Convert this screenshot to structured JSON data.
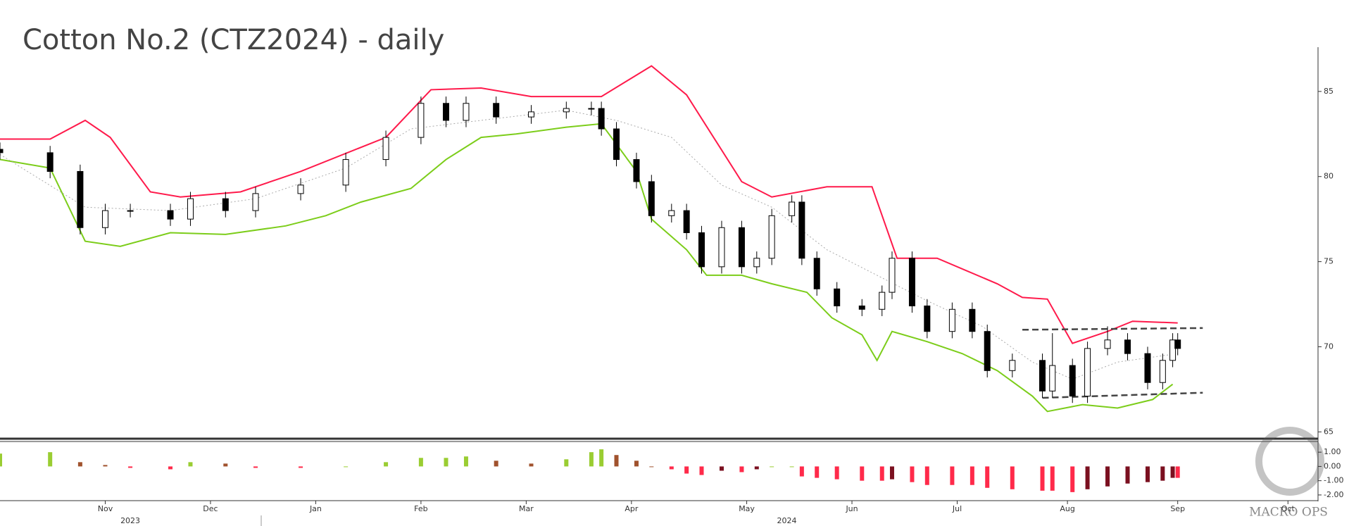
{
  "chart_data": {
    "type": "candlestick",
    "title": "Cotton No.2 (CTZ2024) - daily",
    "watermark": "MACRO OPS",
    "x": [
      0,
      10,
      16,
      21,
      26,
      34,
      38,
      45,
      51,
      60,
      69,
      77,
      84,
      89,
      93,
      99,
      106,
      113,
      118,
      120,
      123,
      127,
      130,
      134,
      137,
      140,
      144,
      148,
      151,
      154,
      158,
      160,
      163,
      167,
      172,
      176,
      178,
      182,
      185,
      190,
      194,
      197,
      202,
      208,
      210,
      214,
      217,
      221,
      225,
      229,
      232,
      234,
      235
    ],
    "open": [
      81.6,
      81.4,
      80.3,
      77,
      78,
      78,
      77.5,
      78.7,
      78,
      79,
      79.5,
      81,
      82.3,
      84.3,
      83.3,
      84.3,
      83.5,
      83.8,
      84,
      84,
      82.8,
      81,
      79.7,
      77.7,
      78,
      76.7,
      74.7,
      77,
      74.7,
      75.2,
      77.7,
      78.5,
      75.2,
      73.4,
      72.4,
      72.2,
      73.2,
      75.2,
      72.4,
      70.9,
      72.2,
      70.9,
      68.6,
      69.2,
      67.4,
      68.9,
      67.1,
      69.9,
      70.4,
      69.6,
      67.9,
      69.2,
      70.4
    ],
    "high": [
      82.0,
      81.8,
      80.7,
      78.4,
      78.4,
      78.4,
      79.1,
      79.1,
      79.4,
      79.9,
      81.4,
      82.7,
      84.7,
      84.7,
      84.7,
      84.7,
      84.2,
      84.4,
      84.4,
      84.4,
      83.2,
      81.4,
      80.1,
      78.4,
      78.4,
      77.1,
      77.4,
      77.4,
      75.6,
      78.1,
      78.9,
      78.9,
      75.6,
      73.8,
      72.8,
      73.6,
      75.6,
      75.6,
      72.8,
      72.6,
      72.6,
      71.3,
      69.6,
      69.6,
      70.8,
      69.3,
      70.3,
      71.2,
      70.8,
      70.0,
      69.6,
      70.8,
      70.8
    ],
    "low": [
      81.0,
      79.9,
      76.6,
      76.6,
      77.6,
      77.1,
      77.1,
      77.6,
      77.6,
      78.6,
      79.1,
      80.6,
      81.9,
      82.9,
      82.9,
      83.1,
      83.1,
      83.4,
      83.6,
      82.4,
      80.6,
      79.3,
      77.3,
      77.3,
      76.3,
      74.3,
      74.3,
      74.3,
      74.3,
      74.8,
      77.3,
      74.8,
      73.0,
      72.0,
      71.8,
      71.8,
      72.8,
      72.0,
      70.5,
      70.5,
      70.5,
      68.2,
      68.2,
      67.0,
      67.0,
      66.7,
      66.7,
      69.5,
      69.2,
      67.5,
      67.5,
      68.8,
      69.5
    ],
    "close": [
      81.4,
      80.3,
      77,
      78,
      78,
      77.5,
      78.7,
      78,
      79,
      79.5,
      81,
      82.3,
      84.3,
      83.3,
      84.3,
      83.5,
      83.8,
      84,
      84,
      82.8,
      81,
      79.7,
      77.7,
      78,
      76.7,
      74.7,
      77,
      74.7,
      75.2,
      77.7,
      78.5,
      75.2,
      73.4,
      72.4,
      72.2,
      73.2,
      75.2,
      72.4,
      70.9,
      72.2,
      70.9,
      68.6,
      69.2,
      67.4,
      68.9,
      67.1,
      69.9,
      70.4,
      69.6,
      67.9,
      69.2,
      70.4,
      69.9
    ],
    "up_color": "#ffffff",
    "down_color": "#000000",
    "lines": [
      {
        "color": "#ff1a4b",
        "x": [
          0,
          10,
          17,
          22,
          30,
          36,
          48,
          60,
          77,
          86,
          96,
          106,
          120,
          130,
          137,
          148,
          154,
          165,
          174,
          179,
          187,
          199,
          204,
          209,
          214,
          221,
          226,
          235
        ],
        "values": [
          82.2,
          82.2,
          83.3,
          82.3,
          79.1,
          78.8,
          79.1,
          80.3,
          82.3,
          85.1,
          85.2,
          84.7,
          84.7,
          86.5,
          84.8,
          79.7,
          78.8,
          79.4,
          79.4,
          75.2,
          75.2,
          73.7,
          72.9,
          72.8,
          70.2,
          70.9,
          71.5,
          71.4
        ]
      },
      {
        "color": "#7ccd1a",
        "x": [
          0,
          10,
          17,
          24,
          34,
          45,
          57,
          65,
          72,
          82,
          89,
          96,
          103,
          113,
          120,
          127,
          130,
          137,
          141,
          148,
          154,
          161,
          166,
          172,
          175,
          178,
          185,
          192,
          199,
          206,
          209,
          216,
          223,
          230,
          234
        ],
        "values": [
          81,
          80.5,
          76.2,
          75.9,
          76.7,
          76.6,
          77.1,
          77.7,
          78.5,
          79.3,
          81,
          82.3,
          82.5,
          82.9,
          83.1,
          80.3,
          77.5,
          75.7,
          74.2,
          74.2,
          73.7,
          73.2,
          71.7,
          70.7,
          69.2,
          70.9,
          70.3,
          69.6,
          68.6,
          67.1,
          66.2,
          66.6,
          66.4,
          66.9,
          67.8
        ]
      },
      {
        "color": "#aaaaaa",
        "dash": true,
        "x": [
          0,
          17,
          34,
          51,
          69,
          82,
          96,
          113,
          123,
          134,
          144,
          154,
          165,
          175,
          185,
          196,
          206,
          214,
          223,
          235
        ],
        "values": [
          81.3,
          78.2,
          78,
          78.7,
          80.5,
          82.8,
          83.3,
          83.9,
          83.3,
          82.3,
          79.5,
          78.2,
          75.7,
          74.2,
          72.7,
          71.2,
          69.1,
          68.1,
          69.1,
          69.6
        ]
      }
    ],
    "trendlines": [
      {
        "x": [
          204,
          240
        ],
        "values": [
          71,
          71.1
        ]
      },
      {
        "x": [
          208,
          240
        ],
        "values": [
          67,
          67.3
        ]
      }
    ],
    "xlim": [
      0,
      263
    ],
    "ylim": [
      64.6,
      87.6
    ],
    "yticks": [
      65,
      70,
      75,
      80,
      85
    ],
    "xticks": [
      {
        "value": 21,
        "label": "Nov"
      },
      {
        "value": 42,
        "label": "Dec"
      },
      {
        "value": 63,
        "label": "Jan"
      },
      {
        "value": 84,
        "label": "Feb"
      },
      {
        "value": 105,
        "label": "Mar"
      },
      {
        "value": 126,
        "label": "Apr"
      },
      {
        "value": 149,
        "label": "May"
      },
      {
        "value": 170,
        "label": "Jun"
      },
      {
        "value": 191,
        "label": "Jul"
      },
      {
        "value": 213,
        "label": "Aug"
      },
      {
        "value": 235,
        "label": "Sep"
      },
      {
        "value": 257,
        "label": "Oct"
      }
    ],
    "year_ticks": [
      {
        "value": 26,
        "label": "2023"
      },
      {
        "value": 157,
        "label": "2024"
      }
    ],
    "histogram": {
      "values": [
        0.9,
        1.0,
        0.3,
        0.1,
        -0.1,
        -0.2,
        0.3,
        0.2,
        -0.1,
        -0.1,
        0.0,
        0.3,
        0.6,
        0.6,
        0.7,
        0.4,
        0.2,
        0.5,
        1.0,
        1.2,
        0.8,
        0.4,
        0.0,
        -0.2,
        -0.5,
        -0.6,
        -0.3,
        -0.4,
        -0.2,
        0.0,
        0.0,
        -0.7,
        -0.8,
        -0.9,
        -1.0,
        -1.0,
        -0.9,
        -1.1,
        -1.3,
        -1.3,
        -1.3,
        -1.5,
        -1.6,
        -1.7,
        -1.7,
        -1.8,
        -1.6,
        -1.4,
        -1.2,
        -1.1,
        -1.0,
        -0.8,
        -0.8
      ],
      "colors": {
        "pos_up": "#9acd32",
        "pos_down": "#a0522d",
        "neg_down": "#ff2a4a",
        "neg_up": "#7b1020"
      },
      "ylim": [
        -2.3,
        1.6
      ],
      "yticks": [
        {
          "value": 1,
          "label": "1.00"
        },
        {
          "value": 0,
          "label": "0.00"
        },
        {
          "value": -1,
          "label": "-1.00"
        },
        {
          "value": -2,
          "label": "-2.00"
        }
      ]
    }
  }
}
